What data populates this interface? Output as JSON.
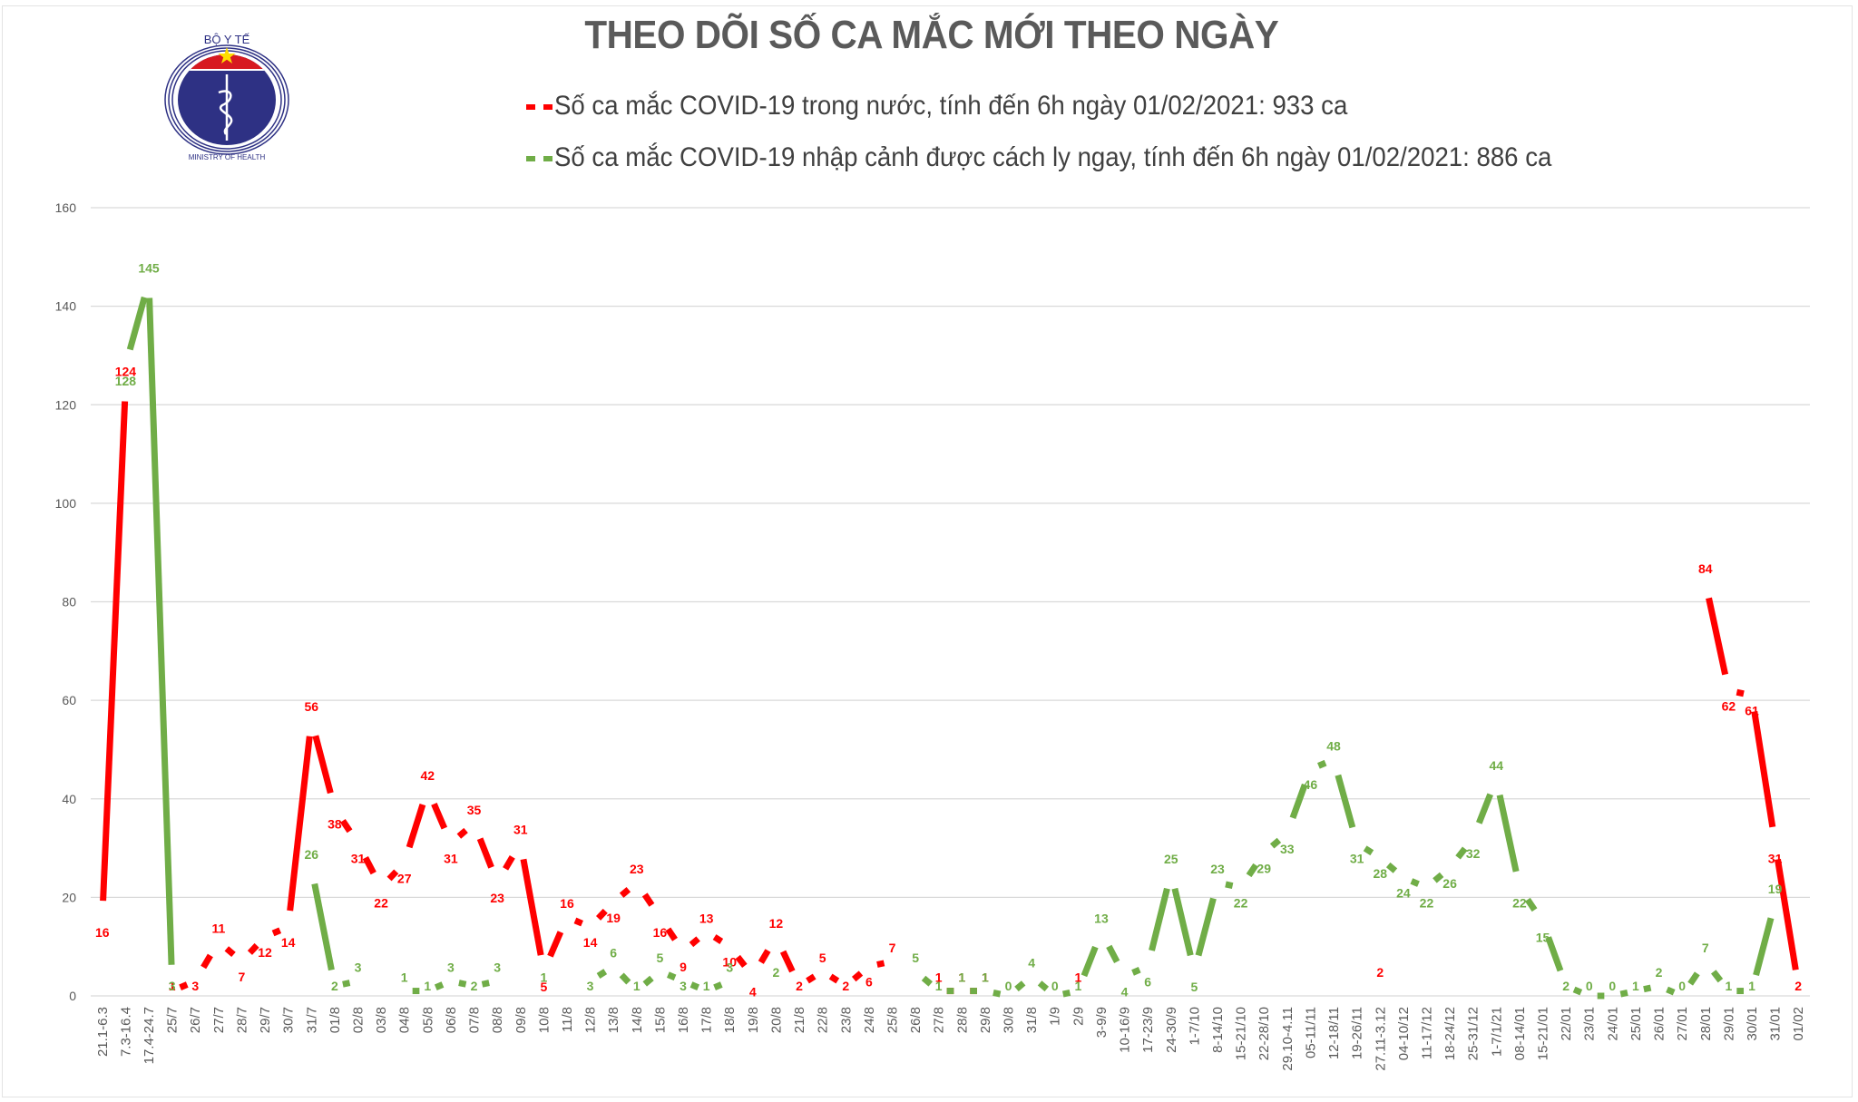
{
  "header": {
    "title": "THEO DÕI SỐ CA MẮC MỚI THEO NGÀY",
    "logo": {
      "top_text": "BỘ Y TẾ",
      "bottom_text": "MINISTRY OF HEALTH"
    }
  },
  "legend": [
    {
      "label": "Số ca mắc COVID-19 trong nước, tính đến 6h ngày 01/02/2021: 933 ca",
      "color": "#ff0000"
    },
    {
      "label": "Số ca mắc COVID-19 nhập cảnh được cách ly ngay, tính đến 6h ngày 01/02/2021: 886 ca",
      "color": "#70ad47"
    }
  ],
  "chart_data": {
    "type": "line",
    "title": "THEO DÕI SỐ CA MẮC MỚI THEO NGÀY",
    "xlabel": "",
    "ylabel": "",
    "ylim": [
      0,
      160
    ],
    "yticks": [
      0,
      20,
      40,
      60,
      80,
      100,
      120,
      140,
      160
    ],
    "grid": true,
    "legend_position": "top",
    "categories": [
      "21.1-6.3",
      "7.3-16.4",
      "17.4-24.7",
      "25/7",
      "26/7",
      "27/7",
      "28/7",
      "29/7",
      "30/7",
      "31/7",
      "01/8",
      "02/8",
      "03/8",
      "04/8",
      "05/8",
      "06/8",
      "07/8",
      "08/8",
      "09/8",
      "10/8",
      "11/8",
      "12/8",
      "13/8",
      "14/8",
      "15/8",
      "16/8",
      "17/8",
      "18/8",
      "19/8",
      "20/8",
      "21/8",
      "22/8",
      "23/8",
      "24/8",
      "25/8",
      "26/8",
      "27/8",
      "28/8",
      "29/8",
      "30/8",
      "31/8",
      "1/9",
      "2/9",
      "3-9/9",
      "10-16/9",
      "17-23/9",
      "24-30/9",
      "1-7/10",
      "8-14/10",
      "15-21/10",
      "22-28/10",
      "29.10-4.11",
      "05-11/11",
      "12-18/11",
      "19-26/11",
      "27.11-3.12",
      "04-10/12",
      "11-17/12",
      "18-24/12",
      "25-31/12",
      "1-7/1/21",
      "08-14/01",
      "15-21/01",
      "22/01",
      "23/01",
      "24/01",
      "25/01",
      "26/01",
      "27/01",
      "28/01",
      "29/01",
      "30/01",
      "31/01",
      "01/02"
    ],
    "series": [
      {
        "name": "Số ca mắc COVID-19 trong nước",
        "color": "#ff0000",
        "values": [
          16,
          124,
          null,
          1,
          3,
          11,
          7,
          12,
          14,
          56,
          38,
          31,
          22,
          27,
          42,
          31,
          35,
          23,
          31,
          5,
          16,
          14,
          19,
          23,
          16,
          9,
          13,
          10,
          4,
          12,
          2,
          5,
          2,
          6,
          7,
          null,
          1,
          1,
          1,
          null,
          null,
          null,
          1,
          null,
          null,
          null,
          null,
          null,
          null,
          null,
          null,
          null,
          null,
          null,
          null,
          2,
          null,
          null,
          null,
          null,
          null,
          null,
          null,
          null,
          null,
          null,
          null,
          null,
          null,
          84,
          62,
          61,
          31,
          2
        ]
      },
      {
        "name": "Số ca mắc COVID-19 nhập cảnh được cách ly ngay",
        "color": "#70ad47",
        "values": [
          null,
          128,
          145,
          3,
          null,
          null,
          null,
          null,
          null,
          26,
          2,
          3,
          null,
          1,
          1,
          3,
          2,
          3,
          null,
          1,
          null,
          3,
          6,
          1,
          5,
          3,
          1,
          3,
          null,
          2,
          null,
          null,
          null,
          null,
          null,
          5,
          1,
          1,
          1,
          0,
          4,
          0,
          1,
          13,
          4,
          6,
          25,
          5,
          23,
          22,
          29,
          33,
          46,
          48,
          31,
          28,
          24,
          22,
          26,
          32,
          44,
          22,
          15,
          2,
          0,
          0,
          1,
          2,
          0,
          7,
          1,
          1,
          19,
          null
        ]
      }
    ]
  }
}
